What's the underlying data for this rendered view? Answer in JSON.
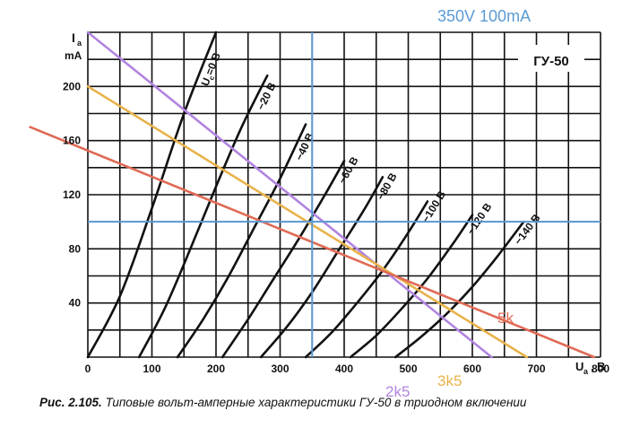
{
  "chart_data": {
    "type": "line",
    "title": "ГУ-50",
    "ylabel_symbol": "I",
    "ylabel_sub": "a",
    "ylabel_unit": "mA",
    "xlabel_symbol": "U",
    "xlabel_sub": "a",
    "xlabel_unit": "В",
    "xlim": [
      0,
      800
    ],
    "ylim": [
      0,
      240
    ],
    "x_grid_step": 50,
    "y_grid_step": 20,
    "x_ticks": [
      "0",
      "100",
      "200",
      "300",
      "400",
      "500",
      "600",
      "700",
      "800"
    ],
    "y_ticks": [
      "40",
      "80",
      "120",
      "160",
      "200"
    ],
    "grid": true,
    "header_annotation": "350V 100mA",
    "operating_point": {
      "x": 350,
      "y": 100
    },
    "tube_curves": [
      {
        "name": "Uc=0 В",
        "label_prefix": "U",
        "label_sub": "c",
        "label_suffix": "=0 В",
        "color": "#111111",
        "x": [
          0,
          50,
          100,
          150,
          200
        ],
        "y": [
          0,
          45,
          110,
          180,
          240
        ]
      },
      {
        "name": "−20 В",
        "label": "−20 В",
        "color": "#111111",
        "x": [
          80,
          120,
          160,
          200,
          240,
          280
        ],
        "y": [
          0,
          36,
          80,
          126,
          170,
          208
        ]
      },
      {
        "name": "−40 В",
        "label": "−40 В",
        "color": "#111111",
        "x": [
          140,
          180,
          220,
          260,
          300,
          340
        ],
        "y": [
          0,
          28,
          60,
          96,
          132,
          172
        ]
      },
      {
        "name": "−60 В",
        "label": "−60 В",
        "color": "#111111",
        "x": [
          210,
          250,
          290,
          330,
          370,
          400
        ],
        "y": [
          0,
          28,
          58,
          88,
          120,
          145
        ]
      },
      {
        "name": "−80 В",
        "label": "−80 В",
        "color": "#111111",
        "x": [
          270,
          310,
          350,
          390,
          430,
          460
        ],
        "y": [
          0,
          22,
          48,
          78,
          108,
          133
        ]
      },
      {
        "name": "−100 В",
        "label": "−100 В",
        "color": "#111111",
        "x": [
          340,
          380,
          420,
          460,
          500,
          530
        ],
        "y": [
          0,
          18,
          40,
          64,
          92,
          115
        ]
      },
      {
        "name": "−120 В",
        "label": "−120 В",
        "color": "#111111",
        "x": [
          410,
          450,
          490,
          530,
          570,
          600
        ],
        "y": [
          0,
          16,
          36,
          58,
          84,
          105
        ]
      },
      {
        "name": "−140 В",
        "label": "−140 В",
        "color": "#111111",
        "x": [
          480,
          520,
          560,
          600,
          640,
          680
        ],
        "y": [
          0,
          15,
          32,
          52,
          75,
          100
        ]
      }
    ],
    "load_lines": [
      {
        "name": "2k5",
        "label": "2k5",
        "color": "#b184e0",
        "x": [
          0,
          630
        ],
        "y": [
          240,
          0
        ]
      },
      {
        "name": "3k5",
        "label": "3k5",
        "color": "#e8b24a",
        "x": [
          0,
          685
        ],
        "y": [
          200,
          0
        ]
      },
      {
        "name": "5k",
        "label": "5k",
        "color": "#e06a55",
        "x": [
          -90,
          790
        ],
        "y": [
          170,
          0
        ]
      }
    ],
    "caption_bold": "Рис. 2.105.",
    "caption_text": "Типовые вольт-амперные характеристики ГУ-50 в триодном включении"
  }
}
